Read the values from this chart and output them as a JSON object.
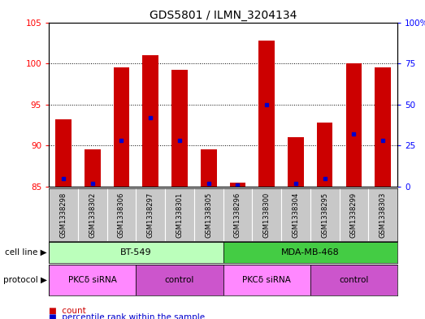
{
  "title": "GDS5801 / ILMN_3204134",
  "samples": [
    "GSM1338298",
    "GSM1338302",
    "GSM1338306",
    "GSM1338297",
    "GSM1338301",
    "GSM1338305",
    "GSM1338296",
    "GSM1338300",
    "GSM1338304",
    "GSM1338295",
    "GSM1338299",
    "GSM1338303"
  ],
  "counts": [
    93.2,
    89.5,
    99.5,
    101.0,
    99.2,
    89.5,
    85.5,
    102.8,
    91.0,
    92.8,
    100.0,
    99.5
  ],
  "percentiles_pct": [
    5.0,
    2.0,
    28.0,
    42.0,
    28.0,
    2.0,
    1.0,
    50.0,
    2.0,
    5.0,
    32.0,
    28.0
  ],
  "ymin": 85,
  "ymax": 105,
  "yticks_left": [
    85,
    90,
    95,
    100,
    105
  ],
  "yticks_right": [
    0,
    25,
    50,
    75,
    100
  ],
  "bar_color": "#cc0000",
  "dot_color": "#0000cc",
  "cell_line_labels": [
    "BT-549",
    "MDA-MB-468"
  ],
  "cell_line_ranges": [
    [
      0,
      6
    ],
    [
      6,
      12
    ]
  ],
  "cell_line_colors_left": "#bbffbb",
  "cell_line_colors_right": "#44cc44",
  "protocol_labels": [
    "PKCδ siRNA",
    "control",
    "PKCδ siRNA",
    "control"
  ],
  "protocol_ranges": [
    [
      0,
      3
    ],
    [
      3,
      6
    ],
    [
      6,
      9
    ],
    [
      9,
      12
    ]
  ],
  "protocol_color_alt1": "#ff88ff",
  "protocol_color_alt2": "#cc55cc",
  "bg_color": "#ffffff",
  "sample_bg": "#c8c8c8",
  "legend_count_label": "count",
  "legend_pct_label": "percentile rank within the sample"
}
